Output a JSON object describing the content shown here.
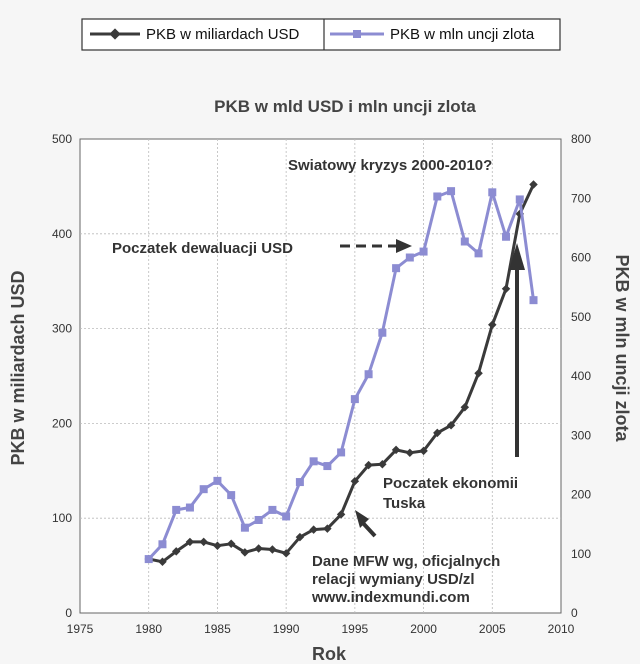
{
  "chart_data": {
    "type": "line",
    "title": "PKB w mld USD i mln uncji zlota",
    "xlabel": "Rok",
    "ylabel": "PKB w miliardach USD",
    "ylabel_right": "PKB w mln uncji zlota",
    "xlim": [
      1975,
      2010
    ],
    "ylim": [
      0,
      500
    ],
    "ylim_right": [
      0,
      800
    ],
    "x_ticks": [
      1975,
      1980,
      1985,
      1990,
      1995,
      2000,
      2005,
      2010
    ],
    "y_ticks": [
      0,
      100,
      200,
      300,
      400,
      500
    ],
    "y_ticks_right": [
      0,
      100,
      200,
      300,
      400,
      500,
      600,
      700,
      800
    ],
    "grid": true,
    "legend_position": "top",
    "series": [
      {
        "name": "PKB w miliardach USD",
        "axis": "left",
        "color": "#3a3a3a",
        "marker": "diamond",
        "x": [
          1980,
          1981,
          1982,
          1983,
          1984,
          1985,
          1986,
          1987,
          1988,
          1989,
          1990,
          1991,
          1992,
          1993,
          1994,
          1995,
          1996,
          1997,
          1998,
          1999,
          2000,
          2001,
          2002,
          2003,
          2004,
          2005,
          2006,
          2007,
          2008
        ],
        "y": [
          57,
          54,
          65,
          75,
          75,
          71,
          73,
          64,
          68,
          67,
          63,
          80,
          88,
          89,
          104,
          139,
          156,
          157,
          172,
          169,
          171,
          190,
          198,
          217,
          253,
          304,
          342,
          421,
          452
        ]
      },
      {
        "name": "PKB w mln uncji zlota",
        "axis": "right",
        "color": "#8c8cd2",
        "marker": "square",
        "x": [
          1980,
          1981,
          1982,
          1983,
          1984,
          1985,
          1986,
          1987,
          1988,
          1989,
          1990,
          1991,
          1992,
          1993,
          1994,
          1995,
          1996,
          1997,
          1998,
          1999,
          2000,
          2001,
          2002,
          2003,
          2004,
          2005,
          2006,
          2007,
          2008
        ],
        "y": [
          91,
          116,
          174,
          178,
          209,
          223,
          199,
          144,
          157,
          174,
          163,
          221,
          256,
          248,
          271,
          361,
          403,
          473,
          582,
          600,
          610,
          703,
          712,
          627,
          607,
          710,
          635,
          698,
          528
        ]
      }
    ],
    "annotations": [
      {
        "text": "Swiatowy kryzys 2000-2010?"
      },
      {
        "text": "Poczatek dewaluacji USD"
      },
      {
        "text": "Poczatek ekonomii"
      },
      {
        "text": "Tuska"
      },
      {
        "text": "Dane MFW wg, oficjalnych"
      },
      {
        "text": "relacji wymiany USD/zl"
      },
      {
        "text": "www.indexmundi.com"
      }
    ]
  }
}
